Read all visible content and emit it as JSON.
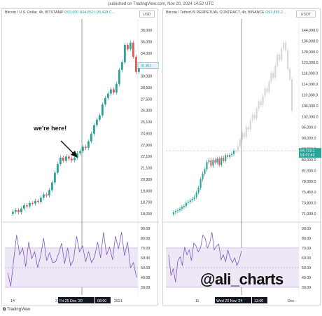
{
  "header": {
    "published_line": "published on TradingView.com, Nov 20, 2024 14:52 UTC"
  },
  "footer": {
    "brand": "TradingView"
  },
  "watermark": "@ali_charts",
  "colors": {
    "up": "#26a69a",
    "down": "#ef5350",
    "rsi_line": "#7e57c2",
    "rsi_band": "#ede7f6",
    "ghost": "#d6d6d6"
  },
  "chart_data": [
    {
      "type": "candlestick",
      "title": "Bitcoin / U.S. Dollar, 4h, BITSTAMP",
      "ohlc_text": "O93,600 H94,852 L93,428 C...",
      "currency": "USD",
      "price_label": "31,811",
      "annotation": "we're here!",
      "y_ticks": [
        "38,000",
        "36,000",
        "34,000",
        "32,000",
        "30,000",
        "28,500",
        "27,500",
        "26,300",
        "25,100",
        "23,900",
        "22,900",
        "22,100",
        "21,100",
        "20,300",
        "19,600",
        "18,700",
        "18,050"
      ],
      "x_labels": [
        "14",
        "21",
        "Fri 25 Dec '20",
        "08:00",
        "2021"
      ],
      "closes": [
        18300,
        18450,
        18250,
        18600,
        18900,
        18800,
        19100,
        19050,
        19300,
        19200,
        19600,
        19900,
        19800,
        20300,
        21000,
        21900,
        22700,
        23300,
        23000,
        23400,
        23200,
        23050,
        23300,
        23700,
        23900,
        24300,
        24200,
        24800,
        25500,
        26300,
        26800,
        27200,
        28200,
        28800,
        29200,
        29600,
        29300,
        30100,
        31400,
        32100,
        33700,
        33300,
        33900,
        32600,
        31200,
        31800
      ],
      "rsi": {
        "label_ticks": [
          "90.00",
          "80.00",
          "70.00",
          "60.00",
          "50.00",
          "40.00",
          "30.00"
        ],
        "band": [
          30,
          70
        ],
        "midline": 50,
        "ylim": [
          25,
          92
        ],
        "values": [
          45,
          31,
          58,
          83,
          63,
          70,
          51,
          76,
          59,
          66,
          50,
          62,
          80,
          57,
          65,
          55,
          56,
          64,
          75,
          54,
          70,
          52,
          58,
          82,
          66,
          72,
          56,
          66,
          55,
          61,
          76,
          60,
          86,
          63,
          71,
          58,
          82,
          69,
          86,
          62,
          76,
          50,
          55,
          40
        ]
      },
      "crosshair_label": "Fri 25 Dec '20"
    },
    {
      "type": "candlestick",
      "title": "Bitcoin / TetherUS PERPETUAL CONTRACT, 4h, BINANCE",
      "ohlc_text": "O93,485.2...",
      "currency": "USDT",
      "price_label_1": "94,723.1",
      "price_label_2": "01:07:42",
      "y_ticks": [
        "144,000.0",
        "136,000.0",
        "128,000.0",
        "123,000.0",
        "118,000.0",
        "114,000.0",
        "110,000.0",
        "106,000.0",
        "102,000.0",
        "96,000.0",
        "90,000.0",
        "87,000.0",
        "84,000.0",
        "81,000.0",
        "78,000.0",
        "75,450.0",
        "73,800.0",
        "71,000.0"
      ],
      "x_labels": [
        "11",
        "Wed 20 Nov '24",
        "12:00",
        "Dec"
      ],
      "closes": [
        71200,
        71700,
        72000,
        72500,
        73200,
        73600,
        74800,
        75200,
        75800,
        76300,
        77000,
        78800,
        80600,
        83800,
        86000,
        87600,
        90400,
        91000,
        89000,
        91200,
        90200,
        91700,
        89300,
        92000,
        90800,
        93000,
        92400,
        93100,
        93500,
        94700
      ],
      "projection": [
        94700,
        96500,
        99000,
        101500,
        100000,
        103800,
        102800,
        106400,
        108500,
        107200,
        110800,
        113600,
        112200,
        115600,
        118600,
        117200,
        121200,
        124400,
        122600,
        127200,
        131400,
        129400,
        133700,
        136000,
        133000,
        126000,
        122000,
        110000
      ],
      "rsi": {
        "label_ticks": [
          "90.00",
          "80.00",
          "70.00",
          "60.00",
          "50.00",
          "40.00",
          "30.00"
        ],
        "band": [
          30,
          70
        ],
        "midline": 50,
        "ylim": [
          25,
          92
        ],
        "values": [
          63,
          42,
          49,
          35,
          57,
          61,
          52,
          71,
          63,
          68,
          57,
          75,
          72,
          66,
          70,
          83,
          80,
          70,
          75,
          86,
          68,
          72,
          74,
          58,
          63,
          56,
          68,
          60,
          55,
          60,
          52,
          58,
          67
        ]
      },
      "crosshair_label": "Wed 20 Nov '24"
    }
  ]
}
